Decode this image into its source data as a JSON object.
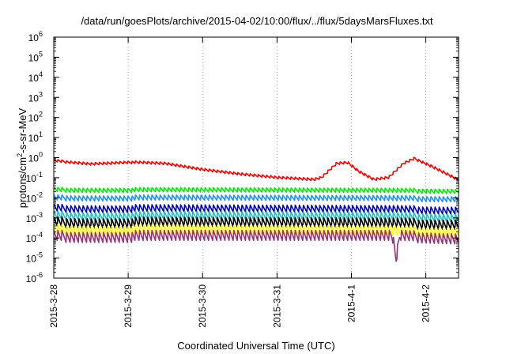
{
  "chart_data": {
    "type": "line",
    "title": "/data/run/goesPlots/archive/2015-04-02/10:00/flux/../flux/5daysMarsFluxes.txt",
    "xlabel": "Coordinated Universal Time (UTC)",
    "ylabel": {
      "main": "protons/cm",
      "sup": "2",
      "rest": "-s-sr-MeV"
    },
    "yscale": "log",
    "ylim_exp": [
      -6,
      6
    ],
    "y_ticks": [
      {
        "base": "10",
        "exp": "-6"
      },
      {
        "base": "10",
        "exp": "-5"
      },
      {
        "base": "10",
        "exp": "-4"
      },
      {
        "base": "10",
        "exp": "-3"
      },
      {
        "base": "10",
        "exp": "-2"
      },
      {
        "base": "10",
        "exp": "-1"
      },
      {
        "base": "10",
        "exp": "0"
      },
      {
        "base": "10",
        "exp": "1"
      },
      {
        "base": "10",
        "exp": "2"
      },
      {
        "base": "10",
        "exp": "3"
      },
      {
        "base": "10",
        "exp": "4"
      },
      {
        "base": "10",
        "exp": "5"
      },
      {
        "base": "10",
        "exp": "6"
      }
    ],
    "x_range_days": [
      0,
      5.44
    ],
    "x_ticks": [
      "2015-3-28",
      "2015-3-29",
      "2015-3-30",
      "2015-3-31",
      "2015-4-1",
      "2015-4-2"
    ],
    "x_tick_days": [
      0,
      1,
      2,
      3,
      4,
      5
    ],
    "grid": true,
    "series": [
      {
        "color": "#ff0000",
        "envelope": [
          [
            0,
            0.7
          ],
          [
            0.5,
            0.5
          ],
          [
            1,
            0.6
          ],
          [
            1.5,
            0.5
          ],
          [
            2,
            0.25
          ],
          [
            2.5,
            0.15
          ],
          [
            3,
            0.1
          ],
          [
            3.5,
            0.08
          ],
          [
            3.6,
            0.1
          ],
          [
            3.8,
            0.5
          ],
          [
            3.95,
            0.55
          ],
          [
            4.1,
            0.2
          ],
          [
            4.3,
            0.08
          ],
          [
            4.5,
            0.1
          ],
          [
            4.7,
            0.5
          ],
          [
            4.85,
            0.9
          ],
          [
            5.1,
            0.35
          ],
          [
            5.44,
            0.08
          ]
        ],
        "ripple": 0.15,
        "step": 0.055
      },
      {
        "color": "#00ee00",
        "envelope": [
          [
            0,
            0.025
          ],
          [
            5.44,
            0.022
          ]
        ],
        "ripple": 0.25,
        "step": 0.055
      },
      {
        "color": "#1e90ff",
        "envelope": [
          [
            0,
            0.01
          ],
          [
            5.44,
            0.009
          ]
        ],
        "ripple": 0.3,
        "step": 0.055
      },
      {
        "color": "#0000cc",
        "envelope": [
          [
            0,
            0.003
          ],
          [
            5.44,
            0.0025
          ]
        ],
        "ripple": 0.4,
        "step": 0.055
      },
      {
        "color": "#20c0c0",
        "envelope": [
          [
            0,
            0.0013
          ],
          [
            5.44,
            0.0011
          ]
        ],
        "ripple": 0.45,
        "step": 0.055
      },
      {
        "color": "#000000",
        "envelope": [
          [
            0,
            0.0006
          ],
          [
            5.44,
            0.0005
          ]
        ],
        "ripple": 0.55,
        "step": 0.055
      },
      {
        "color": "#ffff00",
        "envelope": [
          [
            0,
            0.00025
          ],
          [
            5.44,
            0.0002
          ]
        ],
        "ripple": 0.55,
        "step": 0.055
      },
      {
        "color": "#9b2f7a",
        "envelope": [
          [
            0,
            0.00012
          ],
          [
            4.55,
            0.00012
          ],
          [
            4.6,
            8e-06
          ],
          [
            4.65,
            0.00012
          ],
          [
            5.44,
            0.0001
          ]
        ],
        "ripple": 0.6,
        "step": 0.055
      }
    ]
  }
}
